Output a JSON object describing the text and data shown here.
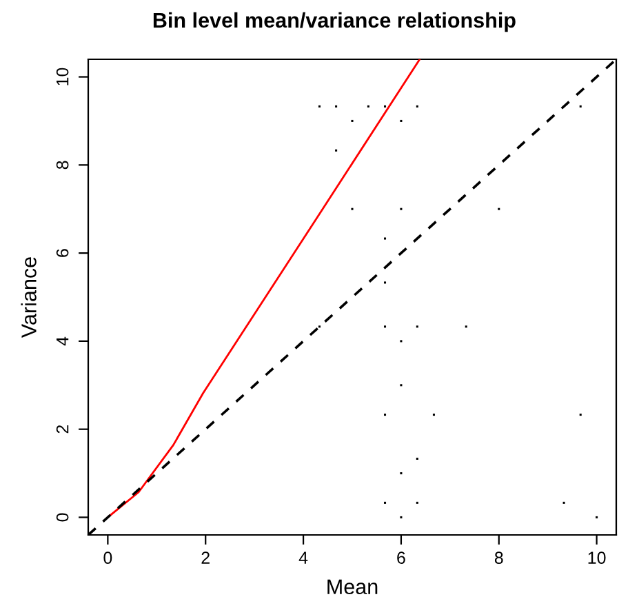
{
  "chart_data": {
    "type": "scatter",
    "title": "Bin level mean/variance relationship",
    "xlabel": "Mean",
    "ylabel": "Variance",
    "xlim": [
      -0.4,
      10.4
    ],
    "ylim": [
      -0.4,
      10.4
    ],
    "xticks": [
      0,
      2,
      4,
      6,
      8,
      10
    ],
    "yticks": [
      0,
      2,
      4,
      6,
      8,
      10
    ],
    "grid": false,
    "legend": false,
    "series": [
      {
        "color": "#000000",
        "marker": "square",
        "x": [
          4.33,
          4.67,
          5.33,
          5.67,
          6.33,
          9.67,
          5.0,
          6.0,
          4.67,
          5.0,
          6.0,
          8.0,
          5.67,
          5.67,
          4.33,
          5.67,
          6.33,
          7.33,
          6.0,
          6.0,
          5.67,
          6.67,
          9.67,
          6.33,
          6.0,
          5.67,
          6.33,
          9.33,
          6.0,
          10.0
        ],
        "values": [
          9.33,
          9.33,
          9.33,
          9.33,
          9.33,
          9.33,
          9.0,
          9.0,
          8.33,
          7.0,
          7.0,
          7.0,
          6.33,
          5.33,
          4.33,
          4.33,
          4.33,
          4.33,
          4.0,
          3.0,
          2.33,
          2.33,
          2.33,
          1.33,
          1.0,
          0.33,
          0.33,
          0.33,
          0.0,
          0.0
        ]
      },
      {
        "type": "line",
        "color": "#ff0000",
        "line_style": "solid",
        "x": [
          0,
          0.63,
          1.34,
          1.95,
          4.26,
          6.38
        ],
        "values": [
          0,
          0.57,
          1.64,
          2.82,
          6.77,
          10.4
        ]
      },
      {
        "type": "line",
        "color": "#000000",
        "line_style": "dashed",
        "x": [
          -0.4,
          10.4
        ],
        "values": [
          -0.4,
          10.4
        ]
      }
    ]
  }
}
